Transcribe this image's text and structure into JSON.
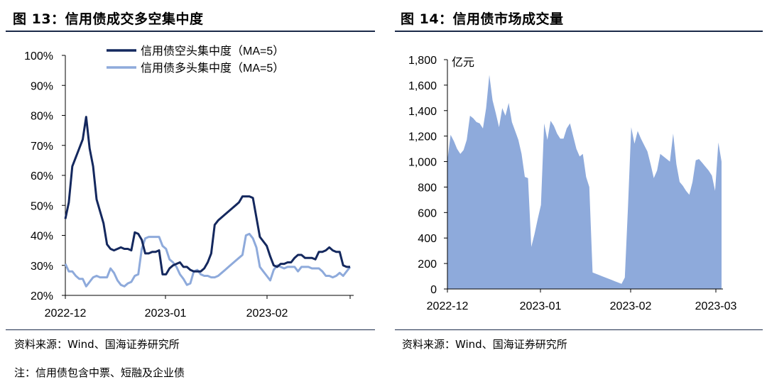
{
  "fig13": {
    "title": "图 13：信用债成交多空集中度",
    "source": "资料来源：Wind、国海证券研究所"
  },
  "fig14": {
    "title": "图 14：信用债市场成交量",
    "source": "资料来源：Wind、国海证券研究所"
  },
  "note": "注：信用债包含中票、短融及企业债",
  "colors": {
    "dark_series": "#14285e",
    "light_series": "#8eaadb",
    "area_fill": "#8eaadb",
    "axis": "#000000"
  },
  "chart_data": [
    {
      "type": "line",
      "y_ticks": [
        "100%",
        "90%",
        "80%",
        "70%",
        "60%",
        "50%",
        "40%",
        "30%",
        "20%"
      ],
      "ylim": [
        20,
        100
      ],
      "x_ticks": [
        "2022-12",
        "2023-01",
        "2023-02"
      ],
      "grid": false,
      "legend_position": "top",
      "series": [
        {
          "name": "信用债空头集中度（MA=5）",
          "values": [
            45.5,
            51,
            63,
            66,
            69,
            72,
            79.5,
            69,
            63,
            52,
            48,
            44,
            37,
            35.5,
            35,
            35.5,
            36,
            35.5,
            35.5,
            35,
            41,
            40.5,
            38.5,
            34,
            34,
            34.5,
            34.5,
            35,
            27,
            27,
            29,
            30,
            30.5,
            31,
            29.5,
            29.5,
            28.5,
            28,
            28,
            28,
            29,
            31,
            34,
            43.5,
            45,
            46,
            47,
            48,
            49,
            50,
            51,
            53,
            53,
            53,
            52.5,
            46,
            39.5,
            38,
            36.5,
            33,
            30,
            29.5,
            30.5,
            30.5,
            31,
            31,
            32.5,
            33.5,
            33.5,
            32.5,
            32.5,
            32.5,
            32,
            34.5,
            34.5,
            35,
            36,
            35,
            34.5,
            34.5,
            30,
            29.5,
            29.5
          ]
        },
        {
          "name": "信用债多头集中度（MA=5）",
          "values": [
            30.5,
            28,
            28,
            26.5,
            25.5,
            25.5,
            23,
            24.5,
            26,
            26.5,
            26,
            26,
            26,
            29,
            27.5,
            25,
            23.5,
            23,
            24,
            24.5,
            26.5,
            27,
            35.5,
            39,
            39.5,
            39.5,
            39.5,
            39.5,
            36.5,
            35.5,
            32,
            31,
            29.5,
            27,
            25.5,
            23.5,
            24,
            28,
            28.5,
            27,
            26.5,
            26.5,
            26,
            26,
            26.5,
            27.5,
            28.5,
            29.5,
            30.5,
            31.5,
            32.5,
            33.5,
            40,
            40.5,
            39,
            36,
            29.5,
            28,
            26.5,
            25,
            28.5,
            30,
            29.5,
            29,
            29.5,
            29.5,
            29.5,
            28,
            29.5,
            29.5,
            29.5,
            29,
            29,
            29,
            28,
            26.5,
            26.5,
            26,
            26.5,
            27.5,
            26.5,
            28,
            29.5
          ]
        }
      ]
    },
    {
      "type": "area",
      "ylabel": "亿元",
      "y_ticks": [
        "1,800",
        "1,600",
        "1,400",
        "1,200",
        "1,000",
        "800",
        "600",
        "400",
        "200",
        "0"
      ],
      "ylim": [
        0,
        1800
      ],
      "x_ticks": [
        "2022-12",
        "2023-01",
        "2023-02",
        "2023-03"
      ],
      "grid": false,
      "series": [
        {
          "name": "成交量",
          "values": [
            1010,
            1210,
            1160,
            1100,
            1060,
            1090,
            1170,
            1360,
            1340,
            1310,
            1300,
            1260,
            1420,
            1680,
            1480,
            1380,
            1270,
            1420,
            1360,
            1460,
            1310,
            1240,
            1170,
            1060,
            880,
            870,
            330,
            430,
            550,
            660,
            1300,
            1170,
            1320,
            1280,
            1220,
            1180,
            1180,
            1260,
            1300,
            1200,
            1100,
            1040,
            1060,
            880,
            800,
            130,
            120,
            110,
            100,
            90,
            80,
            70,
            60,
            50,
            40,
            90,
            650,
            1270,
            1140,
            1240,
            1180,
            1130,
            1080,
            980,
            870,
            930,
            1060,
            1040,
            1020,
            1000,
            1220,
            980,
            840,
            810,
            770,
            740,
            840,
            1010,
            1020,
            990,
            960,
            930,
            890,
            770,
            1150,
            1000
          ]
        }
      ]
    }
  ]
}
